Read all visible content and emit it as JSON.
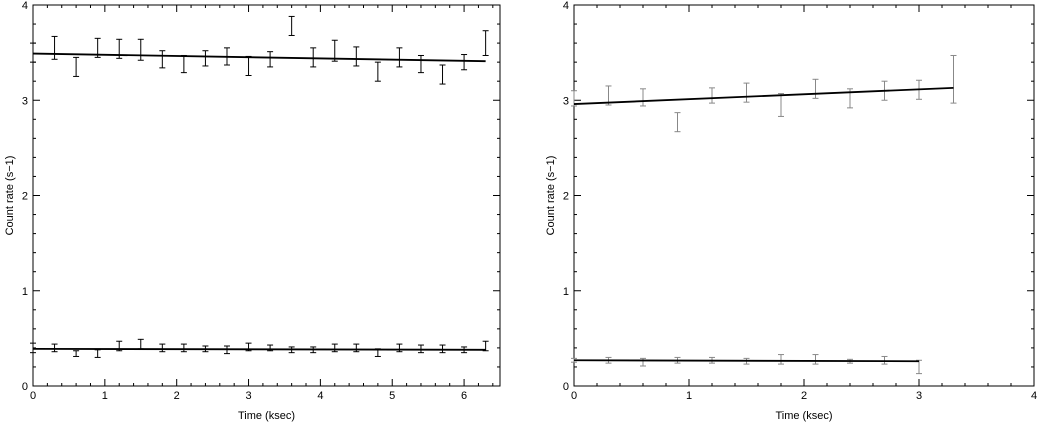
{
  "chart_data": [
    {
      "type": "scatter",
      "title": "",
      "xlabel": "Time (ksec)",
      "ylabel": "Count rate (s−1)",
      "xlim": [
        0,
        6.5
      ],
      "ylim": [
        0,
        4
      ],
      "xticks": [
        0,
        1,
        2,
        3,
        4,
        5,
        6
      ],
      "yticks": [
        0,
        1,
        2,
        3,
        4
      ],
      "grid": false,
      "errorbar_color": "#000000",
      "fit_color": "#000000",
      "series": [
        {
          "x": [
            0,
            0.3,
            0.6,
            0.9,
            1.2,
            1.5,
            1.8,
            2.1,
            2.4,
            2.7,
            3.0,
            3.3,
            3.6,
            3.9,
            4.2,
            4.5,
            4.8,
            5.1,
            5.4,
            5.7,
            6.0,
            6.3
          ],
          "y": [
            3.5,
            3.55,
            3.35,
            3.55,
            3.54,
            3.53,
            3.43,
            3.38,
            3.44,
            3.46,
            3.36,
            3.43,
            3.78,
            3.45,
            3.52,
            3.46,
            3.3,
            3.45,
            3.38,
            3.27,
            3.4,
            3.6
          ],
          "err": [
            0.1,
            0.12,
            0.1,
            0.1,
            0.1,
            0.11,
            0.09,
            0.09,
            0.08,
            0.09,
            0.1,
            0.08,
            0.1,
            0.1,
            0.11,
            0.1,
            0.1,
            0.1,
            0.09,
            0.1,
            0.08,
            0.13
          ],
          "fit": [
            [
              0,
              3.49
            ],
            [
              6.3,
              3.41
            ]
          ]
        },
        {
          "x": [
            0,
            0.3,
            0.6,
            0.9,
            1.2,
            1.5,
            1.8,
            2.1,
            2.4,
            2.7,
            3.0,
            3.3,
            3.6,
            3.9,
            4.2,
            4.5,
            4.8,
            5.1,
            5.4,
            5.7,
            6.0,
            6.3
          ],
          "y": [
            0.4,
            0.4,
            0.34,
            0.34,
            0.42,
            0.44,
            0.4,
            0.4,
            0.39,
            0.38,
            0.41,
            0.4,
            0.38,
            0.38,
            0.4,
            0.4,
            0.35,
            0.4,
            0.39,
            0.39,
            0.38,
            0.42
          ],
          "err": [
            0.05,
            0.04,
            0.03,
            0.04,
            0.05,
            0.05,
            0.04,
            0.04,
            0.03,
            0.04,
            0.04,
            0.03,
            0.03,
            0.03,
            0.04,
            0.04,
            0.04,
            0.04,
            0.04,
            0.04,
            0.03,
            0.05
          ],
          "fit": [
            [
              0,
              0.39
            ],
            [
              6.3,
              0.38
            ]
          ]
        }
      ]
    },
    {
      "type": "scatter",
      "title": "",
      "xlabel": "Time (ksec)",
      "ylabel": "Count rate (s−1)",
      "xlim": [
        0,
        4
      ],
      "ylim": [
        0,
        4
      ],
      "xticks": [
        0,
        1,
        2,
        3,
        4
      ],
      "yticks": [
        0,
        1,
        2,
        3,
        4
      ],
      "grid": false,
      "errorbar_color": "#888888",
      "fit_color": "#000000",
      "series": [
        {
          "x": [
            0,
            0.3,
            0.6,
            0.9,
            1.2,
            1.5,
            1.8,
            2.1,
            2.4,
            2.7,
            3.0,
            3.3
          ],
          "y": [
            3.02,
            3.05,
            3.03,
            2.77,
            3.05,
            3.08,
            2.95,
            3.12,
            3.02,
            3.1,
            3.11,
            3.22
          ],
          "err": [
            0.08,
            0.1,
            0.09,
            0.1,
            0.08,
            0.1,
            0.12,
            0.1,
            0.1,
            0.1,
            0.1,
            0.25
          ],
          "fit": [
            [
              0,
              2.96
            ],
            [
              3.3,
              3.13
            ]
          ]
        },
        {
          "x": [
            0,
            0.3,
            0.6,
            0.9,
            1.2,
            1.5,
            1.8,
            2.1,
            2.4,
            2.7,
            3.0
          ],
          "y": [
            0.27,
            0.27,
            0.25,
            0.27,
            0.27,
            0.26,
            0.28,
            0.28,
            0.26,
            0.27,
            0.2
          ],
          "err": [
            0.02,
            0.03,
            0.04,
            0.03,
            0.03,
            0.03,
            0.05,
            0.05,
            0.02,
            0.04,
            0.07
          ],
          "fit": [
            [
              0,
              0.27
            ],
            [
              3.0,
              0.26
            ]
          ]
        }
      ]
    }
  ]
}
